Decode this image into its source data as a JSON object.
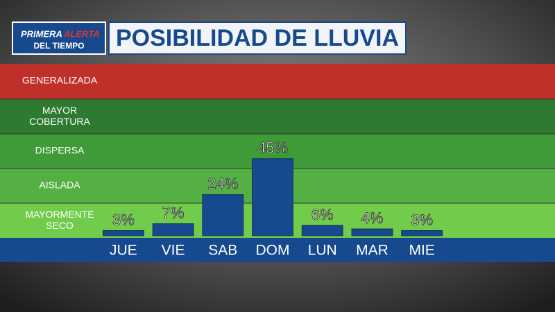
{
  "logo": {
    "word1": "PRIMERA",
    "word2": "ALERTA",
    "line2": "DEL TIEMPO"
  },
  "levels": [
    "GENERALIZADA",
    "MAYOR\nCOBERTURA",
    "DISPERSA",
    "AISLADA",
    "MAYORMENTE\nSECO"
  ],
  "chart_data": {
    "type": "bar",
    "title": "POSIBILIDAD DE LLUVIA",
    "categories": [
      "JUE",
      "VIE",
      "SAB",
      "DOM",
      "LUN",
      "MAR",
      "MIE"
    ],
    "values": [
      3,
      7,
      24,
      45,
      6,
      4,
      3
    ],
    "value_labels": [
      "3%",
      "7%",
      "24%",
      "45%",
      "6%",
      "4%",
      "3%"
    ],
    "color": "#17498f",
    "ylim": [
      0,
      100
    ]
  }
}
